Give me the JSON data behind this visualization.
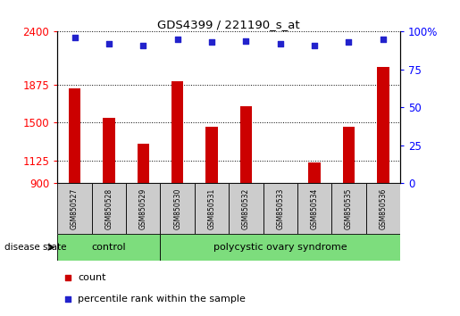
{
  "title": "GDS4399 / 221190_s_at",
  "samples": [
    "GSM850527",
    "GSM850528",
    "GSM850529",
    "GSM850530",
    "GSM850531",
    "GSM850532",
    "GSM850533",
    "GSM850534",
    "GSM850535",
    "GSM850536"
  ],
  "counts": [
    1840,
    1545,
    1295,
    1905,
    1460,
    1660,
    870,
    1105,
    1460,
    2050
  ],
  "percentile_ranks": [
    96,
    92,
    91,
    95,
    93,
    94,
    92,
    91,
    93,
    95
  ],
  "control_count": 3,
  "y_min": 900,
  "y_max": 2400,
  "y_ticks": [
    900,
    1125,
    1500,
    1875,
    2400
  ],
  "y_tick_labels": [
    "900",
    "1125",
    "1500",
    "1875",
    "2400"
  ],
  "right_y_ticks": [
    0,
    25,
    50,
    75,
    100
  ],
  "right_y_tick_labels": [
    "0",
    "25",
    "50",
    "75",
    "100%"
  ],
  "bar_color": "#cc0000",
  "dot_color": "#2222cc",
  "control_fill": "#7ddd7d",
  "pcos_fill": "#7ddd7d",
  "label_bg": "#cccccc",
  "control_label": "control",
  "pcos_label": "polycystic ovary syndrome",
  "disease_state_label": "disease state",
  "legend_count": "count",
  "legend_percentile": "percentile rank within the sample",
  "bg_color": "#ffffff"
}
